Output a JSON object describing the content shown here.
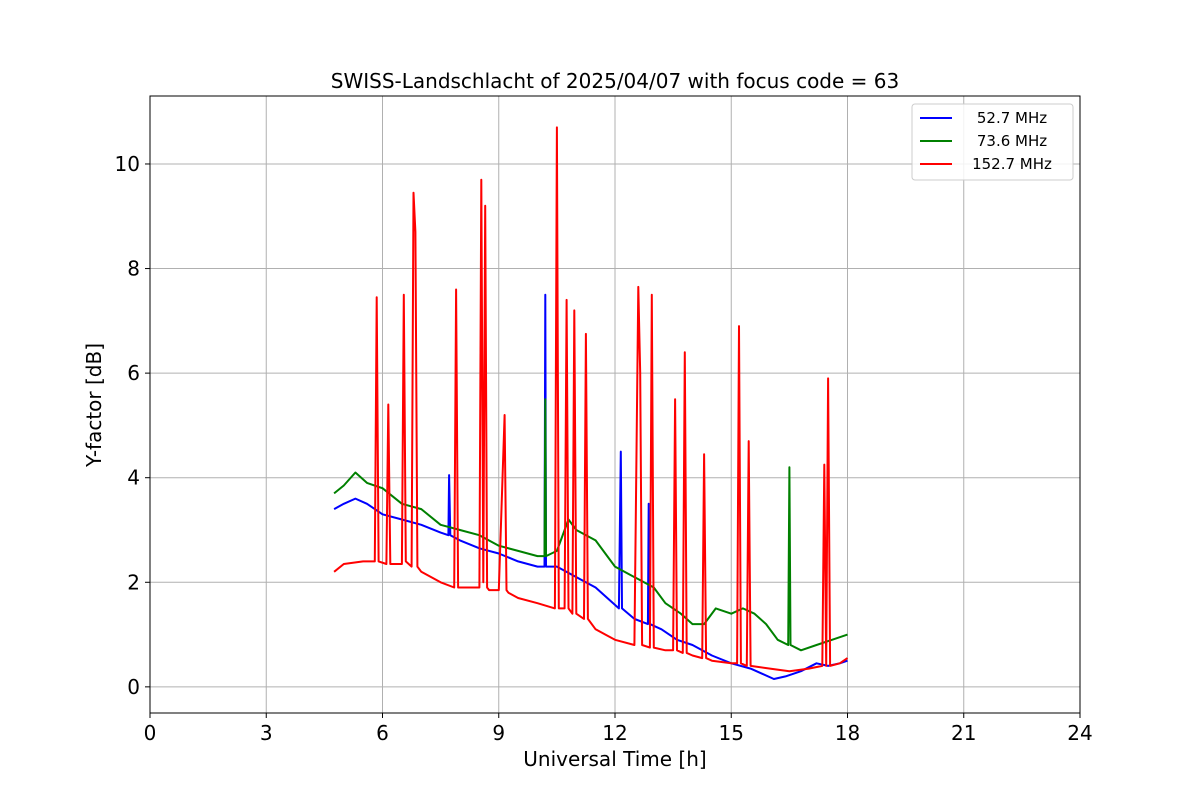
{
  "chart_data": {
    "type": "line",
    "title": "SWISS-Landschlacht of 2025/04/07 with focus code = 63",
    "xlabel": "Universal Time [h]",
    "ylabel": "Y-factor [dB]",
    "xlim": [
      0,
      24
    ],
    "ylim": [
      -0.5,
      11.3
    ],
    "xticks": [
      0,
      3,
      6,
      9,
      12,
      15,
      18,
      21,
      24
    ],
    "xtick_labels": [
      "0",
      "3",
      "6",
      "9",
      "12",
      "15",
      "18",
      "21",
      "24"
    ],
    "yticks": [
      0,
      2,
      4,
      6,
      8,
      10
    ],
    "ytick_labels": [
      "0",
      "2",
      "4",
      "6",
      "8",
      "10"
    ],
    "grid": true,
    "legend_position": "top-right",
    "series": [
      {
        "name": "52.7 MHz",
        "color": "#0000ff",
        "x": [
          4.75,
          5.0,
          5.3,
          5.6,
          6.0,
          6.5,
          7.0,
          7.5,
          7.7,
          7.72,
          7.75,
          8.0,
          8.5,
          9.0,
          9.5,
          10.0,
          10.18,
          10.2,
          10.22,
          10.5,
          11.0,
          11.5,
          11.8,
          12.1,
          12.15,
          12.18,
          12.5,
          12.85,
          12.87,
          12.9,
          13.2,
          13.6,
          14.0,
          14.5,
          15.0,
          15.5,
          15.8,
          16.1,
          16.4,
          16.8,
          17.2,
          17.5,
          17.8,
          18.0
        ],
        "y": [
          3.4,
          3.5,
          3.6,
          3.5,
          3.3,
          3.2,
          3.1,
          2.95,
          2.9,
          4.05,
          2.9,
          2.8,
          2.65,
          2.55,
          2.4,
          2.3,
          2.3,
          7.5,
          2.3,
          2.3,
          2.1,
          1.9,
          1.7,
          1.5,
          4.5,
          1.5,
          1.3,
          1.2,
          3.5,
          1.2,
          1.1,
          0.9,
          0.8,
          0.6,
          0.45,
          0.35,
          0.25,
          0.15,
          0.2,
          0.3,
          0.45,
          0.4,
          0.45,
          0.5
        ]
      },
      {
        "name": "73.6 MHz",
        "color": "#008000",
        "x": [
          4.75,
          5.0,
          5.3,
          5.6,
          6.0,
          6.5,
          7.0,
          7.5,
          8.0,
          8.5,
          9.0,
          9.5,
          10.0,
          10.18,
          10.2,
          10.22,
          10.5,
          10.8,
          11.0,
          11.5,
          12.0,
          12.5,
          13.0,
          13.3,
          13.7,
          14.0,
          14.3,
          14.6,
          15.0,
          15.3,
          15.6,
          15.9,
          16.2,
          16.47,
          16.5,
          16.53,
          16.8,
          17.2,
          17.6,
          18.0
        ],
        "y": [
          3.7,
          3.85,
          4.1,
          3.9,
          3.8,
          3.5,
          3.4,
          3.1,
          3.0,
          2.9,
          2.7,
          2.6,
          2.5,
          2.5,
          5.5,
          2.5,
          2.6,
          3.2,
          3.0,
          2.8,
          2.3,
          2.1,
          1.9,
          1.6,
          1.4,
          1.2,
          1.2,
          1.5,
          1.4,
          1.5,
          1.4,
          1.2,
          0.9,
          0.8,
          4.2,
          0.8,
          0.7,
          0.8,
          0.9,
          1.0
        ]
      },
      {
        "name": "152.7 MHz",
        "color": "#ff0000",
        "x": [
          4.75,
          5.0,
          5.5,
          5.8,
          5.85,
          5.9,
          6.1,
          6.15,
          6.2,
          6.5,
          6.55,
          6.6,
          6.75,
          6.8,
          6.85,
          6.9,
          7.0,
          7.5,
          7.85,
          7.9,
          7.95,
          8.0,
          8.5,
          8.55,
          8.6,
          8.65,
          8.7,
          8.75,
          9.0,
          9.15,
          9.2,
          9.25,
          9.5,
          10.0,
          10.45,
          10.5,
          10.55,
          10.7,
          10.75,
          10.8,
          10.9,
          10.95,
          11.0,
          11.2,
          11.25,
          11.3,
          11.5,
          12.0,
          12.5,
          12.6,
          12.65,
          12.7,
          12.9,
          12.95,
          13.0,
          13.3,
          13.5,
          13.55,
          13.6,
          13.75,
          13.8,
          13.85,
          14.0,
          14.25,
          14.3,
          14.35,
          14.5,
          15.0,
          15.15,
          15.2,
          15.25,
          15.4,
          15.45,
          15.5,
          16.0,
          16.5,
          17.0,
          17.35,
          17.4,
          17.45,
          17.5,
          17.55,
          17.8,
          18.0
        ],
        "y": [
          2.2,
          2.35,
          2.4,
          2.4,
          7.45,
          2.4,
          2.35,
          5.4,
          2.35,
          2.35,
          7.5,
          2.4,
          2.3,
          9.45,
          8.7,
          2.3,
          2.2,
          2.0,
          1.9,
          7.6,
          1.9,
          1.9,
          1.9,
          9.7,
          2.0,
          9.2,
          1.9,
          1.85,
          1.85,
          5.2,
          1.85,
          1.8,
          1.7,
          1.6,
          1.5,
          10.7,
          1.5,
          1.5,
          7.4,
          1.5,
          1.4,
          7.2,
          1.4,
          1.3,
          6.75,
          1.3,
          1.1,
          0.9,
          0.8,
          7.65,
          6.0,
          0.8,
          0.75,
          7.5,
          0.75,
          0.7,
          0.7,
          5.5,
          0.7,
          0.65,
          6.4,
          0.65,
          0.6,
          0.55,
          4.45,
          0.55,
          0.5,
          0.45,
          0.45,
          6.9,
          0.45,
          0.4,
          4.7,
          0.4,
          0.35,
          0.3,
          0.35,
          0.4,
          4.25,
          0.4,
          5.9,
          0.4,
          0.45,
          0.55
        ]
      }
    ]
  }
}
